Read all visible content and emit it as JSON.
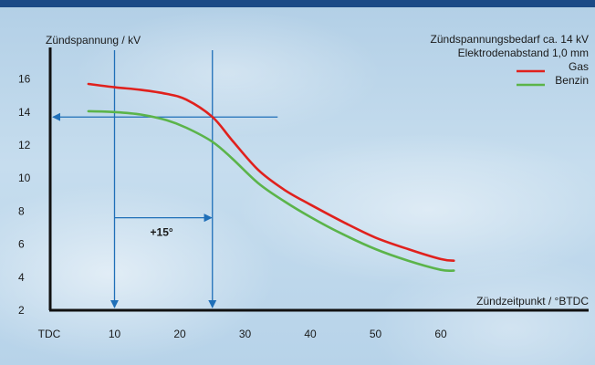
{
  "chart_data": {
    "type": "line",
    "ylabel": "Zündspannung / kV",
    "xlabel": "Zündzeitpunkt / °BTDC",
    "x_ticks": [
      "TDC",
      "10",
      "20",
      "30",
      "40",
      "50",
      "60"
    ],
    "y_ticks": [
      2,
      4,
      6,
      8,
      10,
      12,
      14,
      16
    ],
    "xlim": [
      0,
      60
    ],
    "ylim": [
      2,
      16
    ],
    "legend_position": "top-right",
    "info_lines": [
      "Zündspannungsbedarf ca. 14 kV",
      "Elektrodenabstand 1,0 mm"
    ],
    "series": [
      {
        "name": "Gas",
        "color": "#e0211d",
        "points": [
          [
            6,
            15.7
          ],
          [
            10,
            15.5
          ],
          [
            14,
            15.35
          ],
          [
            18,
            15.1
          ],
          [
            21,
            14.75
          ],
          [
            25,
            13.7
          ],
          [
            28,
            12.3
          ],
          [
            32,
            10.5
          ],
          [
            36,
            9.3
          ],
          [
            40,
            8.4
          ],
          [
            45,
            7.35
          ],
          [
            50,
            6.4
          ],
          [
            55,
            5.7
          ],
          [
            60,
            5.1
          ],
          [
            62,
            5.0
          ]
        ]
      },
      {
        "name": "Benzin",
        "color": "#5bb44a",
        "points": [
          [
            6,
            14.05
          ],
          [
            10,
            14.0
          ],
          [
            14,
            13.85
          ],
          [
            18,
            13.5
          ],
          [
            21,
            13.05
          ],
          [
            25,
            12.2
          ],
          [
            28,
            11.2
          ],
          [
            32,
            9.7
          ],
          [
            36,
            8.6
          ],
          [
            40,
            7.65
          ],
          [
            45,
            6.6
          ],
          [
            50,
            5.7
          ],
          [
            55,
            5.0
          ],
          [
            60,
            4.45
          ],
          [
            62,
            4.4
          ]
        ]
      }
    ],
    "annotations": {
      "shift_label": "+15°",
      "vlines_x": [
        10,
        25
      ],
      "hline_y": 13.7,
      "hline_x_end": 35,
      "shift_from_x": 10,
      "shift_to_x": 25,
      "shift_y": 7.6
    },
    "colors": {
      "annotation": "#1f6fb8",
      "axis": "#111111",
      "top_bar": "#1b4a86"
    }
  }
}
